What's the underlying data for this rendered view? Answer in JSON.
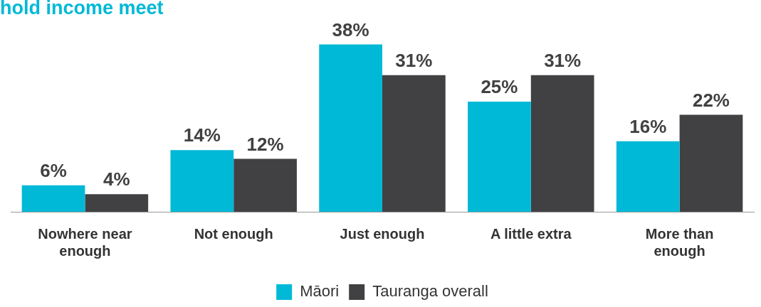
{
  "chart_data": {
    "type": "bar",
    "title": "hold income meet",
    "categories": [
      "Nowhere near enough",
      "Not enough",
      "Just enough",
      "A little extra",
      "More than enough"
    ],
    "series": [
      {
        "name": "Māori",
        "color": "#00b9d6",
        "values": [
          6,
          14,
          38,
          25,
          16
        ],
        "value_labels": [
          "6%",
          "14%",
          "38%",
          "25%",
          "16%"
        ]
      },
      {
        "name": "Tauranga overall",
        "color": "#414143",
        "values": [
          4,
          12,
          31,
          31,
          22
        ],
        "value_labels": [
          "4%",
          "12%",
          "31%",
          "31%",
          "22%"
        ]
      }
    ],
    "legend": "bottom"
  }
}
